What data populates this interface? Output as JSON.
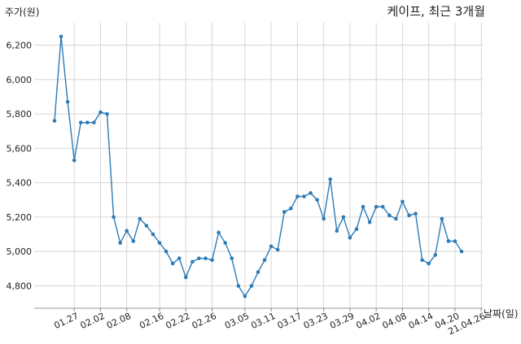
{
  "chart_data": {
    "type": "line",
    "title": "케이프, 최근 3개월",
    "ylabel": "주가(원)",
    "xlabel": "날짜(일)",
    "ylim": [
      4670,
      6330
    ],
    "yticks": [
      4800,
      5000,
      5200,
      5400,
      5600,
      5800,
      6000,
      6200
    ],
    "ytick_labels": [
      "4,800",
      "5,000",
      "5,200",
      "5,400",
      "5,600",
      "5,800",
      "6,000",
      "6,200"
    ],
    "x_tick_labels": [
      "01.27",
      "02.02",
      "02.08",
      "02.16",
      "02.22",
      "02.26",
      "03.05",
      "03.11",
      "03.17",
      "03.23",
      "03.29",
      "04.02",
      "04.08",
      "04.14",
      "04.20",
      "21.04.26"
    ],
    "x_tick_index": [
      3,
      7,
      11,
      16,
      20,
      24,
      29,
      33,
      37,
      41,
      45,
      49,
      53,
      57,
      61,
      65
    ],
    "grid": true,
    "line_color": "#2c7bb6",
    "values": [
      5760,
      6250,
      5870,
      5530,
      5750,
      5750,
      5750,
      5810,
      5800,
      5200,
      5050,
      5120,
      5060,
      5190,
      5150,
      5100,
      5050,
      5000,
      4930,
      4960,
      4850,
      4940,
      4960,
      4960,
      4950,
      5110,
      5050,
      4960,
      4800,
      4740,
      4800,
      4880,
      4950,
      5030,
      5010,
      5230,
      5250,
      5320,
      5320,
      5340,
      5300,
      5190,
      5420,
      5120,
      5200,
      5080,
      5130,
      5260,
      5170,
      5260,
      5260,
      5210,
      5190,
      5290,
      5210,
      5220,
      4950,
      4930,
      4980,
      5190,
      5060,
      5060,
      5000
    ]
  }
}
